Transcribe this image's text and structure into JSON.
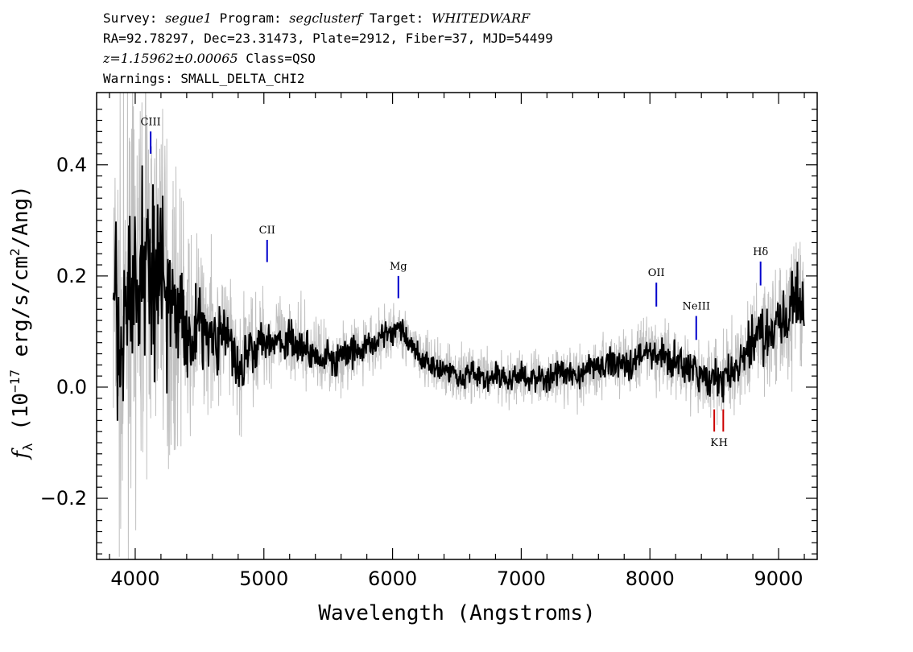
{
  "header": {
    "line1": {
      "survey_label": "Survey: ",
      "survey": "segue1",
      "program_label": " Program: ",
      "program": "segclusterf",
      "target_label": " Target: ",
      "target": "WHITEDWARF"
    },
    "line2": "RA=92.78297, Dec=23.31473, Plate=2912, Fiber=37, MJD=54499",
    "line3": {
      "redshift": "z=1.15962±0.00065",
      "class": " Class=QSO"
    },
    "line4": "Warnings: SMALL_DELTA_CHI2"
  },
  "chart_data": {
    "type": "line",
    "xlabel": "Wavelength (Angstroms)",
    "ylabel": "f_λ (10^-17 erg/s/cm^2/Ang)",
    "xlim": [
      3700,
      9300
    ],
    "ylim": [
      -0.31,
      0.53
    ],
    "xticks": [
      {
        "value": 4000,
        "label": "4000"
      },
      {
        "value": 5000,
        "label": "5000"
      },
      {
        "value": 6000,
        "label": "6000"
      },
      {
        "value": 7000,
        "label": "7000"
      },
      {
        "value": 8000,
        "label": "8000"
      },
      {
        "value": 9000,
        "label": "9000"
      }
    ],
    "yticks": [
      {
        "value": -0.2,
        "label": "−0.2"
      },
      {
        "value": 0.0,
        "label": "0.0"
      },
      {
        "value": 0.2,
        "label": "0.2"
      },
      {
        "value": 0.4,
        "label": "0.4"
      }
    ],
    "series": [
      {
        "role": "flux",
        "color": "#000000",
        "x": [
          3830,
          3900,
          3950,
          4000,
          4050,
          4100,
          4150,
          4200,
          4250,
          4300,
          4350,
          4400,
          4450,
          4500,
          4550,
          4600,
          4650,
          4700,
          4750,
          4800,
          4850,
          4900,
          4950,
          5000,
          5050,
          5100,
          5150,
          5200,
          5250,
          5300,
          5350,
          5400,
          5450,
          5500,
          5550,
          5600,
          5650,
          5700,
          5750,
          5800,
          5850,
          5900,
          5950,
          6000,
          6050,
          6100,
          6150,
          6200,
          6250,
          6300,
          6350,
          6400,
          6450,
          6500,
          6550,
          6600,
          6650,
          6700,
          6750,
          6800,
          6850,
          6900,
          6950,
          7000,
          7050,
          7100,
          7150,
          7200,
          7250,
          7300,
          7350,
          7400,
          7450,
          7500,
          7550,
          7600,
          7650,
          7700,
          7750,
          7800,
          7850,
          7900,
          7950,
          8000,
          8050,
          8100,
          8150,
          8200,
          8250,
          8300,
          8350,
          8400,
          8450,
          8500,
          8550,
          8600,
          8650,
          8700,
          8750,
          8800,
          8850,
          8900,
          8950,
          9000,
          9050,
          9100,
          9150,
          9200
        ],
        "y": [
          0.14,
          0.05,
          0.2,
          0.15,
          0.22,
          0.25,
          0.18,
          0.26,
          0.15,
          0.12,
          0.15,
          0.1,
          0.08,
          0.13,
          0.09,
          0.11,
          0.08,
          0.1,
          0.07,
          0.02,
          0.06,
          0.08,
          0.07,
          0.1,
          0.08,
          0.09,
          0.07,
          0.1,
          0.07,
          0.08,
          0.06,
          0.07,
          0.05,
          0.06,
          0.04,
          0.06,
          0.05,
          0.07,
          0.06,
          0.08,
          0.07,
          0.09,
          0.1,
          0.09,
          0.11,
          0.09,
          0.07,
          0.06,
          0.05,
          0.04,
          0.04,
          0.03,
          0.03,
          0.02,
          0.02,
          0.03,
          0.02,
          0.02,
          0.01,
          0.02,
          0.02,
          0.01,
          0.02,
          0.02,
          0.01,
          0.02,
          0.02,
          0.01,
          0.02,
          0.03,
          0.02,
          0.03,
          0.02,
          0.03,
          0.04,
          0.03,
          0.04,
          0.05,
          0.04,
          0.05,
          0.04,
          0.05,
          0.06,
          0.07,
          0.05,
          0.06,
          0.04,
          0.05,
          0.04,
          0.03,
          0.03,
          0.02,
          0.01,
          0.02,
          0.01,
          0.02,
          0.03,
          0.03,
          0.06,
          0.09,
          0.1,
          0.09,
          0.11,
          0.12,
          0.1,
          0.14,
          0.18,
          0.12
        ]
      },
      {
        "role": "noise",
        "color": "#c0c0c0",
        "x": [
          3830,
          4000,
          4200,
          4400,
          4600,
          4800,
          5000,
          5200,
          5500,
          6000,
          6500,
          7000,
          7500,
          8000,
          8500,
          8800,
          9000,
          9200
        ],
        "y": [
          0.3,
          0.28,
          0.25,
          0.15,
          0.1,
          0.09,
          0.07,
          0.06,
          0.05,
          0.045,
          0.04,
          0.04,
          0.045,
          0.05,
          0.06,
          0.08,
          0.09,
          0.1
        ]
      }
    ],
    "lines": [
      {
        "label": "CIII",
        "wavelength": 4120,
        "color": "#0000cc",
        "y": [
          0.42,
          0.46
        ],
        "label_pos": "above"
      },
      {
        "label": "CII",
        "wavelength": 5025,
        "color": "#0000cc",
        "y": [
          0.225,
          0.265
        ],
        "label_pos": "above"
      },
      {
        "label": "Mg",
        "wavelength": 6045,
        "color": "#0000cc",
        "y": [
          0.16,
          0.2
        ],
        "label_pos": "above"
      },
      {
        "label": "OII",
        "wavelength": 8050,
        "color": "#0000cc",
        "y": [
          0.145,
          0.188
        ],
        "label_pos": "above"
      },
      {
        "label": "NeIII",
        "wavelength": 8360,
        "color": "#0000cc",
        "y": [
          0.085,
          0.128
        ],
        "label_pos": "above"
      },
      {
        "label": "Hδ",
        "wavelength": 8860,
        "color": "#0000cc",
        "y": [
          0.183,
          0.226
        ],
        "label_pos": "above"
      },
      {
        "label": "K",
        "wavelength": 8500,
        "color": "#cc0000",
        "y": [
          -0.08,
          -0.04
        ],
        "label_pos": "below"
      },
      {
        "label": "H",
        "wavelength": 8570,
        "color": "#cc0000",
        "y": [
          -0.08,
          -0.04
        ],
        "label_pos": "below"
      }
    ]
  }
}
